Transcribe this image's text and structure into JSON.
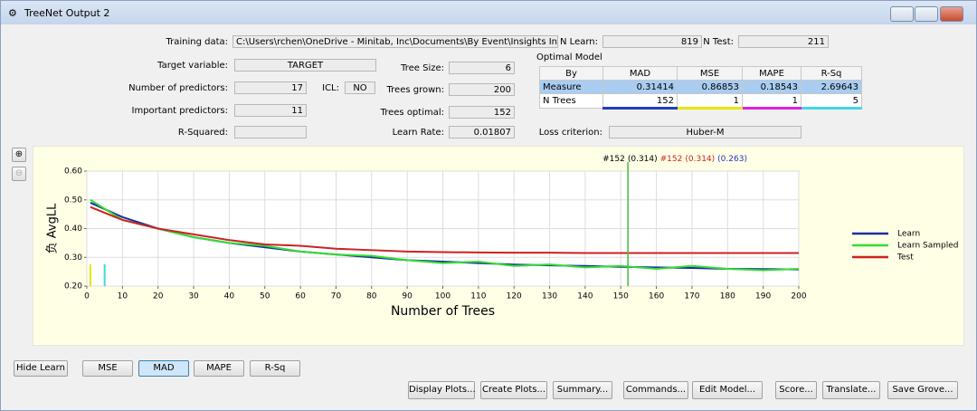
{
  "window": {
    "title": "TreeNet Output 2"
  },
  "fields": {
    "training_data": {
      "label": "Training data:",
      "value": "C:\\Users\\rchen\\OneDrive - Minitab, Inc\\Documents\\By Event\\Insights Indonesia\\T"
    },
    "n_learn": {
      "label": "N Learn:",
      "value": 819
    },
    "n_test": {
      "label": "N Test:",
      "value": 211
    },
    "target_variable": {
      "label": "Target variable:",
      "value": "TARGET"
    },
    "tree_size": {
      "label": "Tree Size:",
      "value": 6
    },
    "number_of_predictors": {
      "label": "Number of predictors:",
      "value": 17
    },
    "icl": {
      "label": "ICL:",
      "value": "NO"
    },
    "trees_grown": {
      "label": "Trees grown:",
      "value": 200
    },
    "important_predictors": {
      "label": "Important predictors:",
      "value": 11
    },
    "trees_optimal": {
      "label": "Trees optimal:",
      "value": 152
    },
    "r_squared": {
      "label": "R-Squared:"
    },
    "learn_rate": {
      "label": "Learn Rate:",
      "value": 0.01807
    },
    "loss_criterion": {
      "label": "Loss criterion:",
      "value": "Huber-M"
    }
  },
  "optimal_model": {
    "title": "Optimal Model",
    "header": [
      "By",
      "MAD",
      "MSE",
      "MAPE",
      "R-Sq"
    ],
    "rows": [
      [
        "Measure",
        0.31414,
        0.86853,
        0.18543,
        2.69643
      ],
      [
        "N Trees",
        152,
        1,
        1,
        5
      ]
    ],
    "underline_colors": [
      "#1f3fbf",
      "#e6e600",
      "#e020e0",
      "#40d8e0"
    ]
  },
  "chart": {
    "type": "line",
    "xlabel": "Number of Trees",
    "ylabel": "负 AvgLL",
    "xlim": [
      0,
      200
    ],
    "ylim": [
      0.2,
      0.6
    ],
    "xticks": [
      0,
      10,
      20,
      30,
      40,
      50,
      60,
      70,
      80,
      90,
      100,
      110,
      120,
      130,
      140,
      150,
      160,
      170,
      180,
      190,
      200
    ],
    "yticks": [
      {
        "value": 0.2,
        "label": "0.20"
      },
      {
        "value": 0.3,
        "label": "0.30"
      },
      {
        "value": 0.4,
        "label": "0.40"
      },
      {
        "value": 0.5,
        "label": "0.50"
      },
      {
        "value": 0.6,
        "label": "0.60"
      }
    ],
    "grid": true,
    "x": [
      1,
      10,
      20,
      30,
      40,
      50,
      60,
      70,
      80,
      90,
      100,
      110,
      120,
      130,
      140,
      150,
      160,
      170,
      180,
      190,
      200
    ],
    "series": [
      {
        "name": "Learn",
        "color": "#1a2fa0",
        "values": [
          0.49,
          0.44,
          0.4,
          0.37,
          0.35,
          0.335,
          0.32,
          0.31,
          0.3,
          0.29,
          0.285,
          0.28,
          0.275,
          0.272,
          0.27,
          0.267,
          0.265,
          0.263,
          0.26,
          0.259,
          0.258
        ]
      },
      {
        "name": "Learn Sampled",
        "color": "#33dd33",
        "values": [
          0.5,
          0.43,
          0.4,
          0.37,
          0.35,
          0.34,
          0.32,
          0.31,
          0.305,
          0.29,
          0.28,
          0.285,
          0.27,
          0.275,
          0.265,
          0.27,
          0.26,
          0.27,
          0.26,
          0.255,
          0.26
        ]
      },
      {
        "name": "Test",
        "color": "#cc2222",
        "values": [
          0.475,
          0.43,
          0.4,
          0.38,
          0.36,
          0.345,
          0.34,
          0.33,
          0.325,
          0.32,
          0.318,
          0.317,
          0.316,
          0.316,
          0.315,
          0.315,
          0.315,
          0.315,
          0.315,
          0.315,
          0.315
        ]
      }
    ],
    "optimal_line": {
      "x": 152,
      "color": "#44bb44"
    },
    "optimal_markers": [
      {
        "x": 1,
        "color": "#e6e600"
      },
      {
        "x": 5,
        "color": "#40d8e0"
      }
    ],
    "annotation": [
      {
        "text": "#152",
        "color": "#000000"
      },
      {
        "text": "(0.314)",
        "color": "#000000"
      },
      {
        "text": "#152",
        "color": "#cc2222"
      },
      {
        "text": "(0.314)",
        "color": "#cc2222"
      },
      {
        "text": "(0.263)",
        "color": "#2233cc"
      }
    ],
    "legend": "right"
  },
  "buttons": {
    "toggles": [
      "Hide Learn",
      "MSE",
      "MAD",
      "MAPE",
      "R-Sq"
    ],
    "selected": "MAD",
    "actions": [
      "Display Plots...",
      "Create Plots...",
      "Summary...",
      "Commands...",
      "Edit Model...",
      "Score...",
      "Translate...",
      "Save Grove..."
    ]
  }
}
